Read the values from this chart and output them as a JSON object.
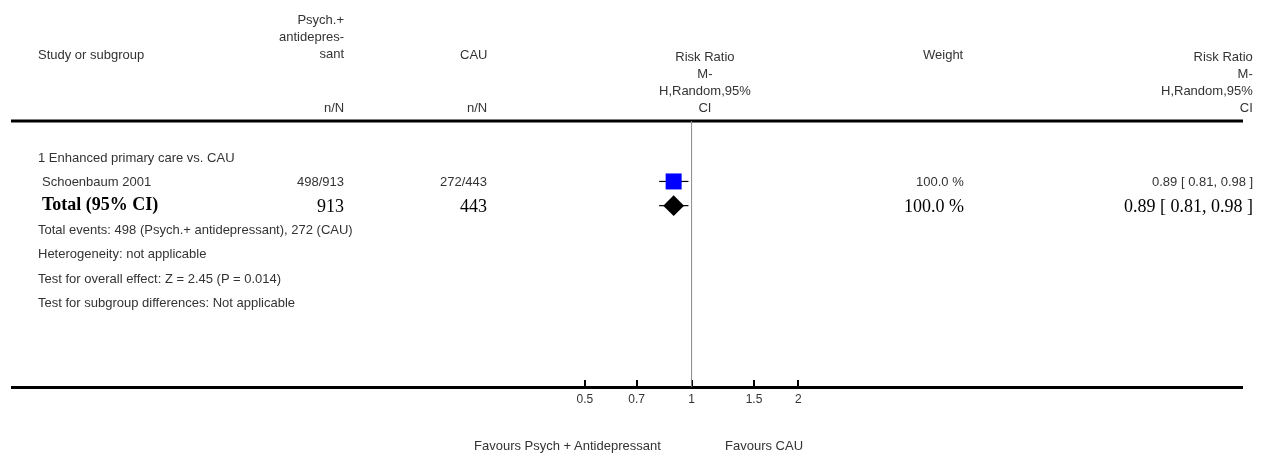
{
  "chart_data": {
    "type": "scatter",
    "orientation": "horizontal",
    "categories": [
      null,
      null,
      "Schoenbaum 2001",
      "Total (95% CI)",
      null,
      null,
      null,
      null,
      null,
      null,
      null
    ],
    "series": [
      {
        "color": "#0000ff",
        "marker": "square",
        "values": [
          null,
          null,
          0.89,
          null,
          null,
          null,
          null,
          null,
          null,
          null,
          null
        ],
        "errors": [
          null,
          null,
          [
            0.81,
            0.98
          ],
          null,
          null,
          null,
          null,
          null,
          null,
          null,
          null
        ]
      },
      {
        "color": "#000000",
        "marker": "diamond",
        "values": [
          null,
          null,
          null,
          0.89,
          null,
          null,
          null,
          null,
          null,
          null,
          null
        ],
        "errors": [
          null,
          null,
          null,
          [
            0.81,
            0.98
          ],
          null,
          null,
          null,
          null,
          null,
          null,
          null
        ]
      }
    ],
    "log": "x",
    "xlim": [
      0.012,
      36
    ],
    "xticks": [
      0.5,
      0.7,
      1,
      1.5,
      2
    ],
    "ref_lines": [
      {
        "axis": "x",
        "value": 1,
        "color": "#888888"
      }
    ],
    "annotations": [
      "Study or subgroup",
      "Psych.+\nantidepres-\nsant",
      "n/N",
      "CAU",
      "n/N",
      "Risk Ratio\nM-\nH,Random,95%\nCI",
      "Weight",
      "Risk Ratio\nM-\nH,Random,95%\nCI",
      "1 Enhanced primary care vs. CAU",
      "498/913",
      "272/443",
      "100.0 %",
      "0.89 [ 0.81, 0.98 ]",
      "913",
      "443",
      "100.0 %",
      "0.89 [ 0.81, 0.98 ]",
      "Total events: 498 (Psych.+ antidepressant), 272 (CAU)",
      "Heterogeneity: not applicable",
      "Test for overall effect: Z = 2.45 (P = 0.014)",
      "Test for subgroup differences: Not applicable",
      "Favours Psych + Antidepressant",
      "Favours CAU"
    ]
  }
}
